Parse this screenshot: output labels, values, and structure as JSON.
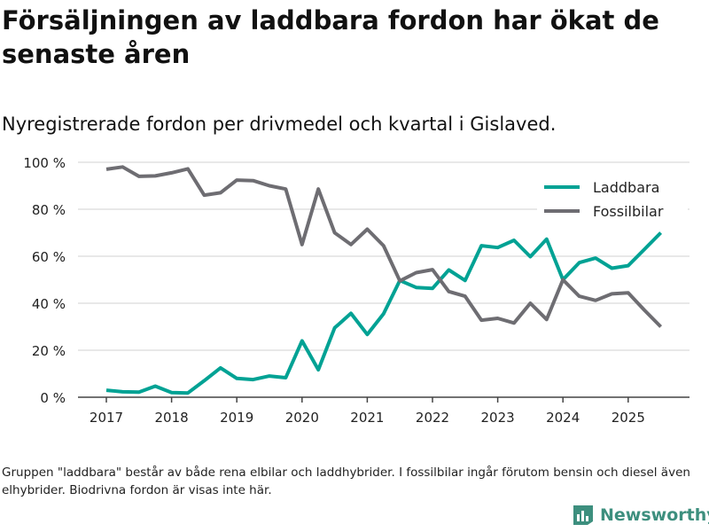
{
  "title": "Försäljningen av laddbara fordon har ökat de senaste åren",
  "subtitle": "Nyregistrerade fordon per drivmedel och kvartal i Gislaved.",
  "footnote": "Gruppen \"laddbara\" består av både rena elbilar och laddhybrider. I fossilbilar ingår förutom bensin och diesel även elhybrider. Biodrivna fordon är visas inte här.",
  "brand": "Newsworthy",
  "chart_data": {
    "type": "line",
    "title": "Nyregistrerade fordon per drivmedel och kvartal i Gislaved.",
    "xlabel": "",
    "ylabel": "",
    "ylim": [
      0,
      100
    ],
    "xlim": [
      2016.6,
      2025.95
    ],
    "x_ticks": [
      2017,
      2018,
      2019,
      2020,
      2021,
      2022,
      2023,
      2024,
      2025
    ],
    "y_ticks": [
      0,
      20,
      40,
      60,
      80,
      100
    ],
    "y_tick_labels": [
      "0 %",
      "20 %",
      "40 %",
      "60 %",
      "80 %",
      "100 %"
    ],
    "grid": true,
    "legend_position": "top-right",
    "x": [
      2017,
      2017.25,
      2017.5,
      2017.75,
      2018,
      2018.25,
      2018.5,
      2018.75,
      2019,
      2019.25,
      2019.5,
      2019.75,
      2020,
      2020.25,
      2020.5,
      2020.75,
      2021,
      2021.25,
      2021.5,
      2021.75,
      2022,
      2022.25,
      2022.5,
      2022.75,
      2023,
      2023.25,
      2023.5,
      2023.75,
      2024,
      2024.25,
      2024.5,
      2024.75,
      2025,
      2025.25,
      2025.5
    ],
    "series": [
      {
        "name": "Laddbara",
        "color": "#00a294",
        "values": [
          3,
          2.3,
          2.2,
          4.7,
          2,
          1.8,
          7,
          12.5,
          8,
          7.5,
          9,
          8.3,
          24,
          11.7,
          29.5,
          35.7,
          26.7,
          35.5,
          49.7,
          46.7,
          46.3,
          54.2,
          49.7,
          64.5,
          63.7,
          66.8,
          59.8,
          67.3,
          50,
          57.3,
          59.2,
          54.9,
          56,
          63,
          70
        ]
      },
      {
        "name": "Fossilbilar",
        "color": "#6e6d72",
        "values": [
          97,
          98,
          94,
          94.2,
          95.5,
          97.2,
          86,
          87,
          92.4,
          92.2,
          90,
          88.6,
          65,
          88.6,
          70,
          65,
          71.5,
          64.5,
          49.5,
          53,
          54.3,
          45,
          43,
          32.8,
          33.6,
          31.6,
          40,
          33.1,
          50,
          43,
          41.2,
          44,
          44.4,
          37,
          30
        ]
      }
    ]
  }
}
